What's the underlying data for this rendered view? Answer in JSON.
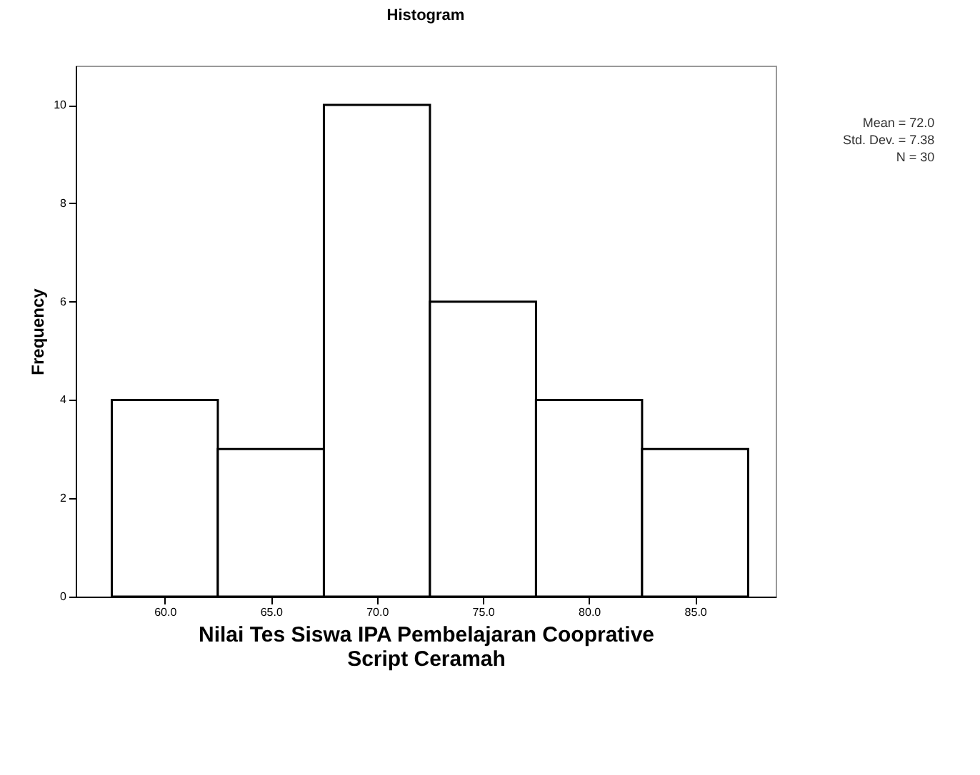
{
  "chart_data": {
    "type": "histogram",
    "title": "Histogram",
    "xlabel": "Nilai Tes Siswa IPA Pembelajaran Cooprative Script Ceramah",
    "ylabel": "Frequency",
    "bins": [
      57.5,
      62.5,
      67.5,
      72.5,
      77.5,
      82.5,
      87.5
    ],
    "values": [
      4,
      3,
      10,
      6,
      4,
      3
    ],
    "color": "#ffffff",
    "xlim": [
      55.8,
      88.8
    ],
    "xticks": [
      {
        "value": 60,
        "label": "60.0"
      },
      {
        "value": 65,
        "label": "65.0"
      },
      {
        "value": 70,
        "label": "70.0"
      },
      {
        "value": 75,
        "label": "75.0"
      },
      {
        "value": 80,
        "label": "80.0"
      },
      {
        "value": 85,
        "label": "85.0"
      }
    ],
    "ylim": [
      0,
      10.8
    ],
    "yticks": [
      0,
      2,
      4,
      6,
      8,
      10
    ],
    "grid": false,
    "annotations": [
      "Mean = 72.0",
      "Std. Dev. = 7.38",
      "N = 30"
    ]
  }
}
